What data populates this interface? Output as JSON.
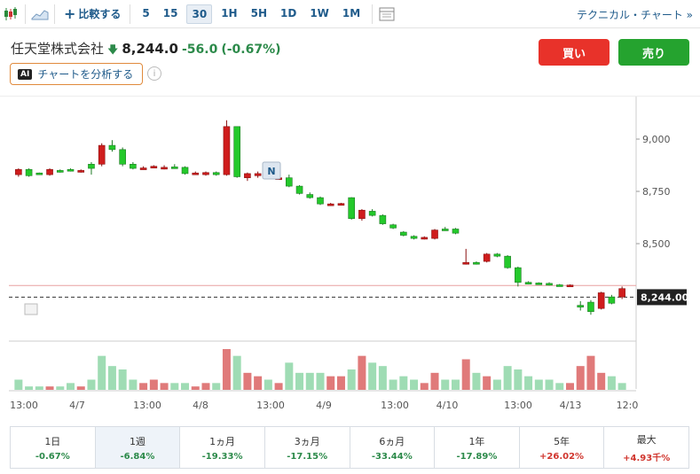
{
  "toolbar": {
    "icons": [
      "candlestick-chart-icon",
      "area-chart-icon"
    ],
    "compare_label": "比較する",
    "intervals": [
      "5",
      "15",
      "30",
      "1H",
      "5H",
      "1D",
      "1W",
      "1M"
    ],
    "active_interval": "30",
    "technical_label": "テクニカル・チャート »"
  },
  "quote": {
    "name": "任天堂株式会社",
    "price": "8,244.0",
    "change": "-56.0",
    "change_pct": "(-0.67%)",
    "arrow": "🡇"
  },
  "ai": {
    "badge": "AI",
    "label": "チャートを分析する",
    "info": "i"
  },
  "actions": {
    "buy": "買い",
    "sell": "売り"
  },
  "marker": "N",
  "chart_data": {
    "type": "candlestick",
    "y_ticks": [
      "9,000",
      "8,750",
      "8,500"
    ],
    "y_tick_values": [
      9000,
      8750,
      8500
    ],
    "last_price_label": "8,244.00",
    "last_price": 8244,
    "prev_close": 8300,
    "x_labels": [
      "13:00",
      "4/7",
      "13:00",
      "4/8",
      "13:00",
      "4/9",
      "13:00",
      "4/10",
      "13:00",
      "4/13",
      "12:0"
    ],
    "colors": {
      "up": "#24c92b",
      "down": "#cf1d1d",
      "vol_up": "#9fdcb4",
      "vol_down": "#e07a7a"
    },
    "candles": [
      [
        8830,
        8855,
        8820,
        8860,
        "down"
      ],
      [
        8855,
        8825,
        8820,
        8860,
        "up"
      ],
      [
        8835,
        8838,
        8830,
        8840,
        "up"
      ],
      [
        8830,
        8855,
        8825,
        8860,
        "down"
      ],
      [
        8850,
        8845,
        8840,
        8855,
        "up"
      ],
      [
        8855,
        8850,
        8845,
        8860,
        "up"
      ],
      [
        8845,
        8850,
        8840,
        8855,
        "down"
      ],
      [
        8860,
        8880,
        8830,
        8890,
        "up"
      ],
      [
        8880,
        8970,
        8870,
        8980,
        "down"
      ],
      [
        8970,
        8950,
        8940,
        8995,
        "up"
      ],
      [
        8950,
        8880,
        8870,
        8960,
        "up"
      ],
      [
        8880,
        8860,
        8855,
        8890,
        "up"
      ],
      [
        8860,
        8862,
        8855,
        8870,
        "down"
      ],
      [
        8870,
        8868,
        8862,
        8875,
        "down"
      ],
      [
        8860,
        8865,
        8855,
        8875,
        "down"
      ],
      [
        8865,
        8867,
        8860,
        8880,
        "up"
      ],
      [
        8865,
        8835,
        8830,
        8870,
        "up"
      ],
      [
        8835,
        8838,
        8830,
        8845,
        "down"
      ],
      [
        8830,
        8840,
        8825,
        8845,
        "down"
      ],
      [
        8840,
        8830,
        8825,
        8845,
        "up"
      ],
      [
        8830,
        9060,
        8825,
        9090,
        "down"
      ],
      [
        9060,
        8820,
        8815,
        9060,
        "up"
      ],
      [
        8815,
        8835,
        8800,
        8840,
        "down"
      ],
      [
        8825,
        8835,
        8815,
        8845,
        "down"
      ],
      [
        8830,
        8820,
        8810,
        8835,
        "up"
      ],
      [
        8815,
        8815,
        8805,
        8820,
        "down"
      ],
      [
        8815,
        8775,
        8770,
        8830,
        "up"
      ],
      [
        8775,
        8740,
        8735,
        8780,
        "up"
      ],
      [
        8735,
        8720,
        8715,
        8745,
        "up"
      ],
      [
        8720,
        8690,
        8685,
        8725,
        "up"
      ],
      [
        8690,
        8690,
        8685,
        8695,
        "down"
      ],
      [
        8688,
        8692,
        8685,
        8695,
        "down"
      ],
      [
        8720,
        8620,
        8615,
        8722,
        "up"
      ],
      [
        8620,
        8660,
        8610,
        8665,
        "down"
      ],
      [
        8655,
        8635,
        8630,
        8665,
        "up"
      ],
      [
        8635,
        8595,
        8590,
        8640,
        "up"
      ],
      [
        8590,
        8575,
        8570,
        8595,
        "up"
      ],
      [
        8555,
        8540,
        8535,
        8560,
        "up"
      ],
      [
        8535,
        8525,
        8520,
        8540,
        "up"
      ],
      [
        8525,
        8530,
        8520,
        8535,
        "down"
      ],
      [
        8525,
        8565,
        8520,
        8570,
        "down"
      ],
      [
        8570,
        8570,
        8565,
        8580,
        "up"
      ],
      [
        8570,
        8550,
        8545,
        8575,
        "up"
      ],
      [
        8405,
        8410,
        8400,
        8475,
        "down"
      ],
      [
        8410,
        8405,
        8400,
        8415,
        "up"
      ],
      [
        8415,
        8450,
        8410,
        8455,
        "down"
      ],
      [
        8450,
        8440,
        8435,
        8455,
        "up"
      ],
      [
        8440,
        8385,
        8380,
        8445,
        "up"
      ],
      [
        8385,
        8315,
        8295,
        8390,
        "up"
      ],
      [
        8315,
        8312,
        8305,
        8320,
        "up"
      ],
      [
        8312,
        8310,
        8305,
        8315,
        "up"
      ],
      [
        8310,
        8302,
        8300,
        8315,
        "up"
      ],
      [
        8300,
        8303,
        8298,
        8307,
        "up"
      ],
      [
        8302,
        8300,
        8298,
        8305,
        "down"
      ],
      [
        8200,
        8205,
        8180,
        8225,
        "up"
      ],
      [
        8175,
        8220,
        8160,
        8230,
        "up"
      ],
      [
        8190,
        8265,
        8185,
        8270,
        "down"
      ],
      [
        8215,
        8245,
        8210,
        8255,
        "up"
      ],
      [
        8245,
        8285,
        8235,
        8295,
        "down"
      ]
    ],
    "volumes": [
      [
        3,
        "up"
      ],
      [
        1,
        "up"
      ],
      [
        1,
        "up"
      ],
      [
        1,
        "down"
      ],
      [
        1,
        "up"
      ],
      [
        2,
        "up"
      ],
      [
        1,
        "down"
      ],
      [
        3,
        "up"
      ],
      [
        10,
        "up"
      ],
      [
        7,
        "up"
      ],
      [
        6,
        "up"
      ],
      [
        3,
        "up"
      ],
      [
        2,
        "down"
      ],
      [
        3,
        "down"
      ],
      [
        2,
        "down"
      ],
      [
        2,
        "up"
      ],
      [
        2,
        "up"
      ],
      [
        1,
        "down"
      ],
      [
        2,
        "down"
      ],
      [
        2,
        "up"
      ],
      [
        12,
        "down"
      ],
      [
        10,
        "up"
      ],
      [
        5,
        "down"
      ],
      [
        4,
        "down"
      ],
      [
        3,
        "up"
      ],
      [
        2,
        "down"
      ],
      [
        8,
        "up"
      ],
      [
        5,
        "up"
      ],
      [
        5,
        "up"
      ],
      [
        5,
        "up"
      ],
      [
        4,
        "down"
      ],
      [
        4,
        "down"
      ],
      [
        6,
        "up"
      ],
      [
        10,
        "down"
      ],
      [
        8,
        "up"
      ],
      [
        7,
        "up"
      ],
      [
        3,
        "up"
      ],
      [
        4,
        "up"
      ],
      [
        3,
        "up"
      ],
      [
        2,
        "down"
      ],
      [
        5,
        "down"
      ],
      [
        3,
        "up"
      ],
      [
        3,
        "up"
      ],
      [
        9,
        "down"
      ],
      [
        5,
        "up"
      ],
      [
        4,
        "down"
      ],
      [
        3,
        "up"
      ],
      [
        7,
        "up"
      ],
      [
        6,
        "up"
      ],
      [
        4,
        "up"
      ],
      [
        3,
        "up"
      ],
      [
        3,
        "up"
      ],
      [
        2,
        "up"
      ],
      [
        2,
        "down"
      ],
      [
        7,
        "down"
      ],
      [
        10,
        "down"
      ],
      [
        5,
        "down"
      ],
      [
        4,
        "up"
      ],
      [
        2,
        "up"
      ]
    ]
  },
  "periods": [
    {
      "label": "1日",
      "value": "-0.67%",
      "dir": "down"
    },
    {
      "label": "1週",
      "value": "-6.84%",
      "dir": "down"
    },
    {
      "label": "1ヵ月",
      "value": "-19.33%",
      "dir": "down"
    },
    {
      "label": "3ヵ月",
      "value": "-17.15%",
      "dir": "down"
    },
    {
      "label": "6ヵ月",
      "value": "-33.44%",
      "dir": "down"
    },
    {
      "label": "1年",
      "value": "-17.89%",
      "dir": "down"
    },
    {
      "label": "5年",
      "value": "+26.02%",
      "dir": "up"
    },
    {
      "label": "最大",
      "value": "+4.93千%",
      "dir": "up"
    }
  ]
}
